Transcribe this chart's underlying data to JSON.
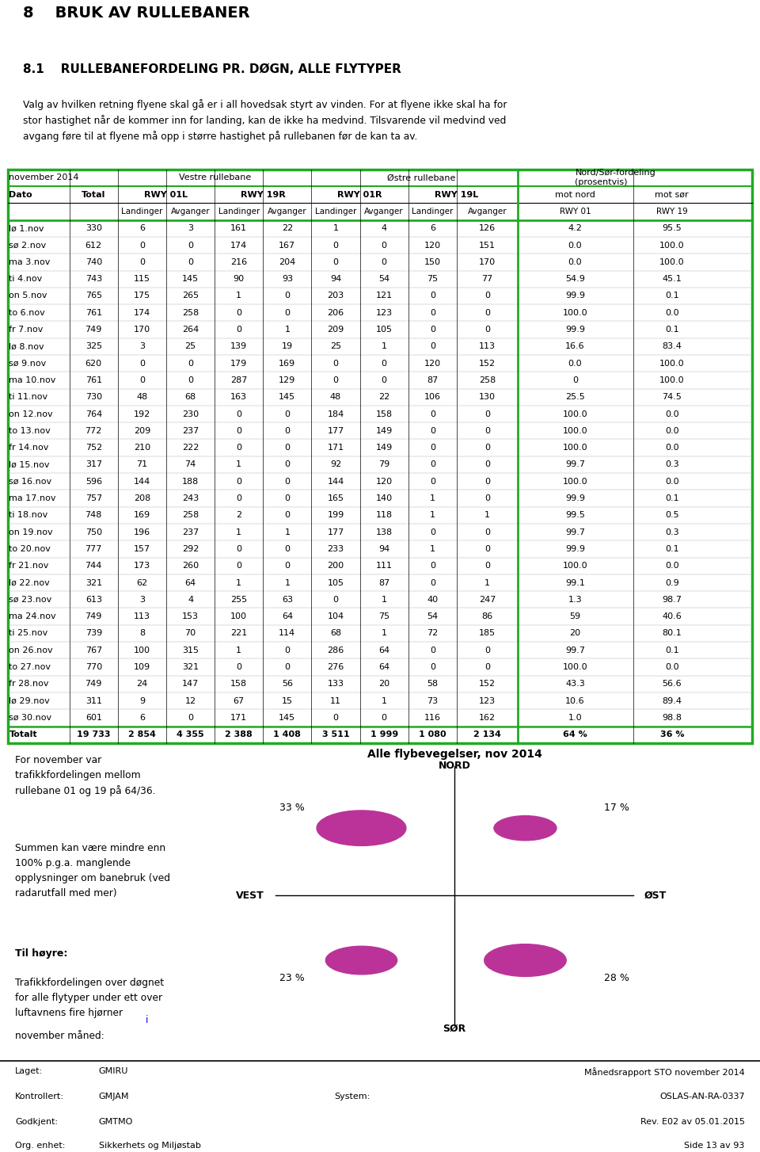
{
  "title_section": "8    BRUK AV RULLEBANER",
  "subtitle_section": "8.1    RULLEBANEFORDELING PR. DØGN, ALLE FLYTYPER",
  "intro_text": "Valg av hvilken retning flyene skal gå er i all hovedsak styrt av vinden. For at flyene ikke skal ha for\nstor hastighet når de kommer inn for landing, kan de ikke ha medvind. Tilsvarende vil medvind ved\navgang føre til at flyene må opp i større hastighet på rullebanen før de kan ta av.",
  "rows": [
    [
      "lø 1.nov",
      "330",
      "6",
      "3",
      "161",
      "22",
      "1",
      "4",
      "6",
      "126",
      "4.2",
      "95.5"
    ],
    [
      "sø 2.nov",
      "612",
      "0",
      "0",
      "174",
      "167",
      "0",
      "0",
      "120",
      "151",
      "0.0",
      "100.0"
    ],
    [
      "ma 3.nov",
      "740",
      "0",
      "0",
      "216",
      "204",
      "0",
      "0",
      "150",
      "170",
      "0.0",
      "100.0"
    ],
    [
      "ti 4.nov",
      "743",
      "115",
      "145",
      "90",
      "93",
      "94",
      "54",
      "75",
      "77",
      "54.9",
      "45.1"
    ],
    [
      "on 5.nov",
      "765",
      "175",
      "265",
      "1",
      "0",
      "203",
      "121",
      "0",
      "0",
      "99.9",
      "0.1"
    ],
    [
      "to 6.nov",
      "761",
      "174",
      "258",
      "0",
      "0",
      "206",
      "123",
      "0",
      "0",
      "100.0",
      "0.0"
    ],
    [
      "fr 7.nov",
      "749",
      "170",
      "264",
      "0",
      "1",
      "209",
      "105",
      "0",
      "0",
      "99.9",
      "0.1"
    ],
    [
      "lø 8.nov",
      "325",
      "3",
      "25",
      "139",
      "19",
      "25",
      "1",
      "0",
      "113",
      "16.6",
      "83.4"
    ],
    [
      "sø 9.nov",
      "620",
      "0",
      "0",
      "179",
      "169",
      "0",
      "0",
      "120",
      "152",
      "0.0",
      "100.0"
    ],
    [
      "ma 10.nov",
      "761",
      "0",
      "0",
      "287",
      "129",
      "0",
      "0",
      "87",
      "258",
      "0",
      "100.0"
    ],
    [
      "ti 11.nov",
      "730",
      "48",
      "68",
      "163",
      "145",
      "48",
      "22",
      "106",
      "130",
      "25.5",
      "74.5"
    ],
    [
      "on 12.nov",
      "764",
      "192",
      "230",
      "0",
      "0",
      "184",
      "158",
      "0",
      "0",
      "100.0",
      "0.0"
    ],
    [
      "to 13.nov",
      "772",
      "209",
      "237",
      "0",
      "0",
      "177",
      "149",
      "0",
      "0",
      "100.0",
      "0.0"
    ],
    [
      "fr 14.nov",
      "752",
      "210",
      "222",
      "0",
      "0",
      "171",
      "149",
      "0",
      "0",
      "100.0",
      "0.0"
    ],
    [
      "lø 15.nov",
      "317",
      "71",
      "74",
      "1",
      "0",
      "92",
      "79",
      "0",
      "0",
      "99.7",
      "0.3"
    ],
    [
      "sø 16.nov",
      "596",
      "144",
      "188",
      "0",
      "0",
      "144",
      "120",
      "0",
      "0",
      "100.0",
      "0.0"
    ],
    [
      "ma 17.nov",
      "757",
      "208",
      "243",
      "0",
      "0",
      "165",
      "140",
      "1",
      "0",
      "99.9",
      "0.1"
    ],
    [
      "ti 18.nov",
      "748",
      "169",
      "258",
      "2",
      "0",
      "199",
      "118",
      "1",
      "1",
      "99.5",
      "0.5"
    ],
    [
      "on 19.nov",
      "750",
      "196",
      "237",
      "1",
      "1",
      "177",
      "138",
      "0",
      "0",
      "99.7",
      "0.3"
    ],
    [
      "to 20.nov",
      "777",
      "157",
      "292",
      "0",
      "0",
      "233",
      "94",
      "1",
      "0",
      "99.9",
      "0.1"
    ],
    [
      "fr 21.nov",
      "744",
      "173",
      "260",
      "0",
      "0",
      "200",
      "111",
      "0",
      "0",
      "100.0",
      "0.0"
    ],
    [
      "lø 22.nov",
      "321",
      "62",
      "64",
      "1",
      "1",
      "105",
      "87",
      "0",
      "1",
      "99.1",
      "0.9"
    ],
    [
      "sø 23.nov",
      "613",
      "3",
      "4",
      "255",
      "63",
      "0",
      "1",
      "40",
      "247",
      "1.3",
      "98.7"
    ],
    [
      "ma 24.nov",
      "749",
      "113",
      "153",
      "100",
      "64",
      "104",
      "75",
      "54",
      "86",
      "59",
      "40.6"
    ],
    [
      "ti 25.nov",
      "739",
      "8",
      "70",
      "221",
      "114",
      "68",
      "1",
      "72",
      "185",
      "20",
      "80.1"
    ],
    [
      "on 26.nov",
      "767",
      "100",
      "315",
      "1",
      "0",
      "286",
      "64",
      "0",
      "0",
      "99.7",
      "0.1"
    ],
    [
      "to 27.nov",
      "770",
      "109",
      "321",
      "0",
      "0",
      "276",
      "64",
      "0",
      "0",
      "100.0",
      "0.0"
    ],
    [
      "fr 28.nov",
      "749",
      "24",
      "147",
      "158",
      "56",
      "133",
      "20",
      "58",
      "152",
      "43.3",
      "56.6"
    ],
    [
      "lø 29.nov",
      "311",
      "9",
      "12",
      "67",
      "15",
      "11",
      "1",
      "73",
      "123",
      "10.6",
      "89.4"
    ],
    [
      "sø 30.nov",
      "601",
      "6",
      "0",
      "171",
      "145",
      "0",
      "0",
      "116",
      "162",
      "1.0",
      "98.8"
    ]
  ],
  "total_row": [
    "Totalt",
    "19 733",
    "2 854",
    "4 355",
    "2 388",
    "1 408",
    "3 511",
    "1 999",
    "1 080",
    "2 134",
    "64 %",
    "36 %"
  ],
  "side_text_left1": "For november var\ntrafikkfordelingen mellom\nrullebane 01 og 19 på 64/36.",
  "side_text_left2": "Summen kan være mindre enn\n100% p.g.a. manglende\nopplysninger om banebruk (ved\nradarutfall med mer)",
  "side_text_right_title": "Alle flybevegelser, nov 2014",
  "compass_nord": "NORD",
  "compass_sor": "SØR",
  "compass_vest": "VEST",
  "compass_ost": "ØST",
  "pct_nw": "33 %",
  "pct_ne": "17 %",
  "pct_sw": "23 %",
  "pct_se": "28 %",
  "circle_color": "#bb3399",
  "footer_laget": "GMIRU",
  "footer_kontrollert": "GMJAM",
  "footer_godkjent": "GMTMO",
  "footer_org": "Sikkerhets og Miljøstab",
  "footer_report": "Månedsrapport STO november 2014",
  "footer_ref": "OSLAS-AN-RA-0337",
  "footer_rev": "Rev. E02 av 05.01.2015",
  "footer_side": "Side 13 av 93",
  "footer_system": "System:",
  "border_color": "#22aa22"
}
